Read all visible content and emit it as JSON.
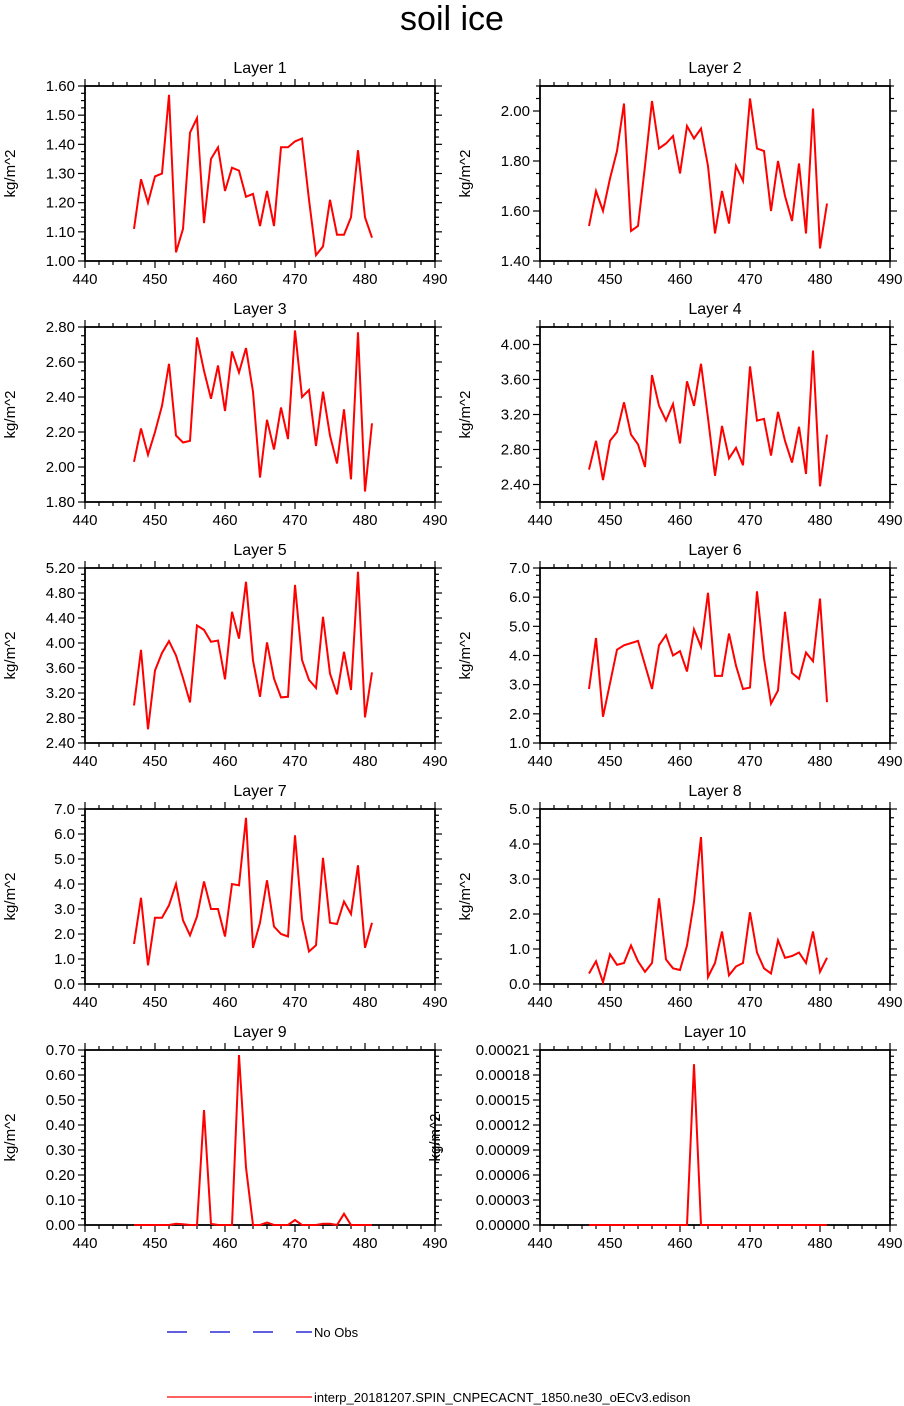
{
  "title": "soil ice",
  "legend": {
    "no_obs_label": "No Obs",
    "no_obs_color": "#0000cc",
    "model_label": "interp_20181207.SPIN_CNPECACNT_1850.ne30_oECv3.edison",
    "model_color": "#ff0000"
  },
  "chart_data": [
    {
      "type": "line",
      "title": "Layer 1",
      "ylabel": "kg/m^2",
      "xlim": [
        440,
        490
      ],
      "xticks": [
        440,
        450,
        460,
        470,
        480,
        490
      ],
      "ylim": [
        1.0,
        1.6
      ],
      "yticks": [
        "1.00",
        "1.10",
        "1.20",
        "1.30",
        "1.40",
        "1.50",
        "1.60"
      ],
      "x": [
        447,
        448,
        449,
        450,
        451,
        452,
        453,
        454,
        455,
        456,
        457,
        458,
        459,
        460,
        461,
        462,
        463,
        464,
        465,
        466,
        467,
        468,
        469,
        470,
        471,
        472,
        473,
        474,
        475,
        476,
        477,
        478,
        479,
        480,
        481
      ],
      "series": [
        {
          "name": "interp_20181207.SPIN_CNPECACNT_1850.ne30_oECv3.edison",
          "values": [
            1.11,
            1.28,
            1.2,
            1.29,
            1.3,
            1.57,
            1.03,
            1.11,
            1.44,
            1.49,
            1.13,
            1.35,
            1.39,
            1.24,
            1.32,
            1.31,
            1.22,
            1.23,
            1.12,
            1.24,
            1.12,
            1.39,
            1.39,
            1.41,
            1.42,
            1.21,
            1.02,
            1.05,
            1.21,
            1.09,
            1.09,
            1.15,
            1.38,
            1.15,
            1.08
          ]
        }
      ]
    },
    {
      "type": "line",
      "title": "Layer 2",
      "ylabel": "kg/m^2",
      "xlim": [
        440,
        490
      ],
      "xticks": [
        440,
        450,
        460,
        470,
        480,
        490
      ],
      "ylim": [
        1.4,
        2.1
      ],
      "yticks": [
        "1.40",
        "1.60",
        "1.80",
        "2.00"
      ],
      "x": [
        447,
        448,
        449,
        450,
        451,
        452,
        453,
        454,
        455,
        456,
        457,
        458,
        459,
        460,
        461,
        462,
        463,
        464,
        465,
        466,
        467,
        468,
        469,
        470,
        471,
        472,
        473,
        474,
        475,
        476,
        477,
        478,
        479,
        480,
        481
      ],
      "series": [
        {
          "name": "interp_20181207.SPIN_CNPECACNT_1850.ne30_oECv3.edison",
          "values": [
            1.54,
            1.68,
            1.6,
            1.73,
            1.84,
            2.03,
            1.52,
            1.54,
            1.78,
            2.04,
            1.85,
            1.87,
            1.9,
            1.75,
            1.94,
            1.89,
            1.93,
            1.78,
            1.51,
            1.68,
            1.55,
            1.78,
            1.72,
            2.05,
            1.85,
            1.84,
            1.6,
            1.8,
            1.66,
            1.56,
            1.79,
            1.51,
            2.01,
            1.45,
            1.63
          ]
        }
      ]
    },
    {
      "type": "line",
      "title": "Layer 3",
      "ylabel": "kg/m^2",
      "xlim": [
        440,
        490
      ],
      "xticks": [
        440,
        450,
        460,
        470,
        480,
        490
      ],
      "ylim": [
        1.8,
        2.8
      ],
      "yticks": [
        "1.80",
        "2.00",
        "2.20",
        "2.40",
        "2.60",
        "2.80"
      ],
      "x": [
        447,
        448,
        449,
        450,
        451,
        452,
        453,
        454,
        455,
        456,
        457,
        458,
        459,
        460,
        461,
        462,
        463,
        464,
        465,
        466,
        467,
        468,
        469,
        470,
        471,
        472,
        473,
        474,
        475,
        476,
        477,
        478,
        479,
        480,
        481
      ],
      "series": [
        {
          "name": "interp_20181207.SPIN_CNPECACNT_1850.ne30_oECv3.edison",
          "values": [
            2.03,
            2.22,
            2.07,
            2.2,
            2.35,
            2.59,
            2.18,
            2.14,
            2.15,
            2.74,
            2.55,
            2.39,
            2.58,
            2.32,
            2.66,
            2.54,
            2.68,
            2.43,
            1.94,
            2.27,
            2.1,
            2.34,
            2.16,
            2.78,
            2.4,
            2.44,
            2.12,
            2.43,
            2.18,
            2.02,
            2.33,
            1.93,
            2.77,
            1.86,
            2.25
          ]
        }
      ]
    },
    {
      "type": "line",
      "title": "Layer 4",
      "ylabel": "kg/m^2",
      "xlim": [
        440,
        490
      ],
      "xticks": [
        440,
        450,
        460,
        470,
        480,
        490
      ],
      "ylim": [
        2.2,
        4.2
      ],
      "yticks": [
        "2.40",
        "2.80",
        "3.20",
        "3.60",
        "4.00"
      ],
      "x": [
        447,
        448,
        449,
        450,
        451,
        452,
        453,
        454,
        455,
        456,
        457,
        458,
        459,
        460,
        461,
        462,
        463,
        464,
        465,
        466,
        467,
        468,
        469,
        470,
        471,
        472,
        473,
        474,
        475,
        476,
        477,
        478,
        479,
        480,
        481
      ],
      "series": [
        {
          "name": "interp_20181207.SPIN_CNPECACNT_1850.ne30_oECv3.edison",
          "values": [
            2.57,
            2.9,
            2.45,
            2.9,
            3.0,
            3.34,
            2.97,
            2.86,
            2.6,
            3.65,
            3.3,
            3.13,
            3.32,
            2.87,
            3.58,
            3.3,
            3.78,
            3.16,
            2.5,
            3.07,
            2.7,
            2.82,
            2.62,
            3.75,
            3.13,
            3.15,
            2.73,
            3.23,
            2.9,
            2.65,
            3.06,
            2.52,
            3.93,
            2.38,
            2.97
          ]
        }
      ]
    },
    {
      "type": "line",
      "title": "Layer 5",
      "ylabel": "kg/m^2",
      "xlim": [
        440,
        490
      ],
      "xticks": [
        440,
        450,
        460,
        470,
        480,
        490
      ],
      "ylim": [
        2.4,
        5.2
      ],
      "yticks": [
        "2.40",
        "2.80",
        "3.20",
        "3.60",
        "4.00",
        "4.40",
        "4.80",
        "5.20"
      ],
      "x": [
        447,
        448,
        449,
        450,
        451,
        452,
        453,
        454,
        455,
        456,
        457,
        458,
        459,
        460,
        461,
        462,
        463,
        464,
        465,
        466,
        467,
        468,
        469,
        470,
        471,
        472,
        473,
        474,
        475,
        476,
        477,
        478,
        479,
        480,
        481
      ],
      "series": [
        {
          "name": "interp_20181207.SPIN_CNPECACNT_1850.ne30_oECv3.edison",
          "values": [
            3.0,
            3.89,
            2.62,
            3.56,
            3.84,
            4.03,
            3.8,
            3.44,
            3.05,
            4.28,
            4.21,
            4.02,
            4.04,
            3.42,
            4.5,
            4.07,
            4.98,
            3.72,
            3.14,
            4.01,
            3.43,
            3.13,
            3.14,
            4.93,
            3.73,
            3.41,
            3.28,
            4.42,
            3.51,
            3.18,
            3.86,
            3.25,
            5.14,
            2.81,
            3.53
          ]
        }
      ]
    },
    {
      "type": "line",
      "title": "Layer 6",
      "ylabel": "kg/m^2",
      "xlim": [
        440,
        490
      ],
      "xticks": [
        440,
        450,
        460,
        470,
        480,
        490
      ],
      "ylim": [
        1.0,
        7.0
      ],
      "yticks": [
        "1.0",
        "2.0",
        "3.0",
        "4.0",
        "5.0",
        "6.0",
        "7.0"
      ],
      "x": [
        447,
        448,
        449,
        451,
        452,
        454,
        456,
        457,
        458,
        459,
        460,
        461,
        462,
        463,
        464,
        465,
        466,
        467,
        468,
        469,
        470,
        471,
        472,
        473,
        474,
        475,
        476,
        477,
        478,
        479,
        480,
        481
      ],
      "series": [
        {
          "name": "interp_20181207.SPIN_CNPECACNT_1850.ne30_oECv3.edison",
          "values": [
            2.85,
            4.6,
            1.9,
            4.2,
            4.35,
            4.5,
            2.85,
            4.35,
            4.7,
            4.0,
            4.15,
            3.45,
            4.9,
            4.3,
            6.15,
            3.3,
            3.3,
            4.75,
            3.65,
            2.85,
            2.9,
            6.2,
            3.9,
            2.35,
            2.8,
            5.5,
            3.4,
            3.2,
            4.1,
            3.8,
            5.95,
            2.4
          ]
        }
      ]
    },
    {
      "type": "line",
      "title": "Layer 7",
      "ylabel": "kg/m^2",
      "xlim": [
        440,
        490
      ],
      "xticks": [
        440,
        450,
        460,
        470,
        480,
        490
      ],
      "ylim": [
        0.0,
        7.0
      ],
      "yticks": [
        "0.0",
        "1.0",
        "2.0",
        "3.0",
        "4.0",
        "5.0",
        "6.0",
        "7.0"
      ],
      "x": [
        447,
        448,
        449,
        450,
        451,
        452,
        453,
        454,
        455,
        456,
        457,
        458,
        459,
        460,
        461,
        462,
        463,
        464,
        465,
        466,
        467,
        468,
        469,
        470,
        471,
        472,
        473,
        474,
        475,
        476,
        477,
        478,
        479,
        480,
        481
      ],
      "series": [
        {
          "name": "interp_20181207.SPIN_CNPECACNT_1850.ne30_oECv3.edison",
          "values": [
            1.6,
            3.45,
            0.75,
            2.65,
            2.65,
            3.15,
            4.0,
            2.55,
            1.95,
            2.7,
            4.1,
            3.0,
            3.0,
            1.9,
            4.0,
            3.95,
            6.65,
            1.45,
            2.45,
            4.15,
            2.3,
            2.0,
            1.9,
            5.95,
            2.6,
            1.3,
            1.55,
            5.05,
            2.45,
            2.4,
            3.3,
            2.8,
            4.75,
            1.45,
            2.45
          ]
        }
      ]
    },
    {
      "type": "line",
      "title": "Layer 8",
      "ylabel": "kg/m^2",
      "xlim": [
        440,
        490
      ],
      "xticks": [
        440,
        450,
        460,
        470,
        480,
        490
      ],
      "ylim": [
        0.0,
        5.0
      ],
      "yticks": [
        "0.0",
        "1.0",
        "2.0",
        "3.0",
        "4.0",
        "5.0"
      ],
      "x": [
        447,
        448,
        449,
        450,
        451,
        452,
        453,
        454,
        455,
        456,
        457,
        458,
        459,
        460,
        461,
        462,
        463,
        464,
        465,
        466,
        467,
        468,
        469,
        470,
        471,
        472,
        473,
        474,
        475,
        476,
        477,
        478,
        479,
        480,
        481
      ],
      "series": [
        {
          "name": "interp_20181207.SPIN_CNPECACNT_1850.ne30_oECv3.edison",
          "values": [
            0.3,
            0.65,
            0.05,
            0.85,
            0.55,
            0.6,
            1.1,
            0.65,
            0.35,
            0.6,
            2.45,
            0.7,
            0.45,
            0.4,
            1.1,
            2.35,
            4.2,
            0.2,
            0.6,
            1.5,
            0.25,
            0.5,
            0.6,
            2.05,
            0.9,
            0.45,
            0.3,
            1.25,
            0.75,
            0.8,
            0.9,
            0.6,
            1.5,
            0.35,
            0.75
          ]
        }
      ]
    },
    {
      "type": "line",
      "title": "Layer 9",
      "ylabel": "kg/m^2",
      "xlim": [
        440,
        490
      ],
      "xticks": [
        440,
        450,
        460,
        470,
        480,
        490
      ],
      "ylim": [
        0.0,
        0.7
      ],
      "yticks": [
        "0.00",
        "0.10",
        "0.20",
        "0.30",
        "0.40",
        "0.50",
        "0.60",
        "0.70"
      ],
      "x": [
        447,
        448,
        449,
        450,
        451,
        452,
        453,
        454,
        455,
        456,
        457,
        458,
        459,
        460,
        461,
        462,
        463,
        464,
        465,
        466,
        467,
        468,
        469,
        470,
        471,
        472,
        473,
        474,
        475,
        476,
        477,
        478,
        479,
        480,
        481
      ],
      "series": [
        {
          "name": "interp_20181207.SPIN_CNPECACNT_1850.ne30_oECv3.edison",
          "values": [
            0.0,
            0.0,
            0.0,
            0.0,
            0.0,
            0.0,
            0.005,
            0.003,
            0.0,
            0.0,
            0.46,
            0.005,
            0.0,
            0.0,
            0.0,
            0.68,
            0.23,
            0.0,
            0.0,
            0.01,
            0.0,
            0.0,
            0.0,
            0.02,
            0.0,
            0.0,
            0.0,
            0.005,
            0.005,
            0.0,
            0.045,
            0.0,
            0.0,
            0.0,
            0.0
          ]
        }
      ]
    },
    {
      "type": "line",
      "title": "Layer 10",
      "ylabel": "kg/m^2",
      "xlim": [
        440,
        490
      ],
      "xticks": [
        440,
        450,
        460,
        470,
        480,
        490
      ],
      "ylim": [
        0.0,
        0.00021
      ],
      "yticks": [
        "0.00000",
        "0.00003",
        "0.00006",
        "0.00009",
        "0.00012",
        "0.00015",
        "0.00018",
        "0.00021"
      ],
      "x": [
        447,
        448,
        449,
        450,
        451,
        452,
        453,
        454,
        455,
        456,
        457,
        458,
        459,
        460,
        461,
        462,
        463,
        464,
        465,
        466,
        467,
        468,
        469,
        470,
        471,
        472,
        473,
        474,
        475,
        476,
        477,
        478,
        479,
        480,
        481
      ],
      "series": [
        {
          "name": "interp_20181207.SPIN_CNPECACNT_1850.ne30_oECv3.edison",
          "values": [
            0,
            0,
            0,
            0,
            0,
            0,
            0,
            0,
            0,
            0,
            0,
            0,
            0,
            0,
            0,
            0.000193,
            0,
            0,
            0,
            0,
            0,
            0,
            0,
            0,
            0,
            0,
            0,
            0,
            0,
            0,
            0,
            0,
            0,
            0,
            0
          ]
        }
      ]
    }
  ]
}
